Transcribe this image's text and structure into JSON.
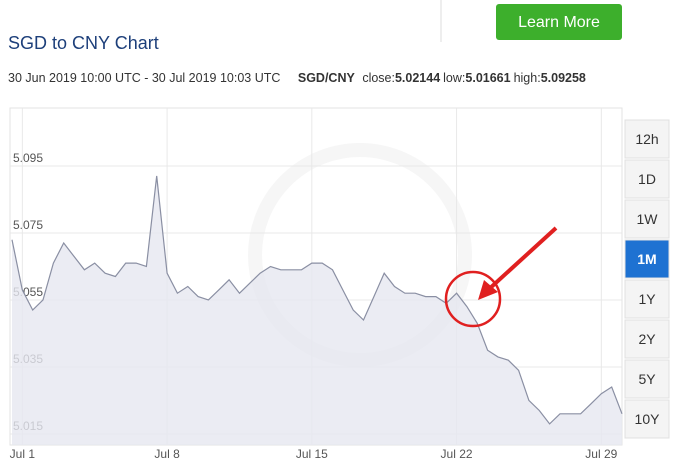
{
  "header": {
    "title": "SGD to CNY Chart",
    "range": "30 Jun 2019 10:00 UTC - 30 Jul 2019 10:03 UTC",
    "pair": "SGD/CNY",
    "stats": [
      {
        "label": "close:",
        "value": "5.02144"
      },
      {
        "label": "low:",
        "value": "5.01661"
      },
      {
        "label": "high:",
        "value": "5.09258"
      }
    ],
    "cta": "Learn More"
  },
  "periods": {
    "buttons": [
      "12h",
      "1D",
      "1W",
      "1M",
      "1Y",
      "2Y",
      "5Y",
      "10Y"
    ],
    "active": 3
  },
  "chart_data": {
    "type": "line",
    "color": "#8a8fa3",
    "grid": true,
    "categories": [
      null,
      "Jul 1",
      null,
      null,
      null,
      null,
      null,
      null,
      null,
      null,
      null,
      null,
      null,
      null,
      null,
      "Jul 8",
      null,
      null,
      null,
      null,
      null,
      null,
      null,
      null,
      null,
      null,
      null,
      null,
      null,
      "Jul 15",
      null,
      null,
      null,
      null,
      null,
      null,
      null,
      null,
      null,
      null,
      null,
      null,
      null,
      "Jul 22",
      null,
      null,
      null,
      null,
      null,
      null,
      null,
      null,
      null,
      null,
      null,
      null,
      null,
      "Jul 29",
      null,
      null
    ],
    "values": [
      5.073,
      5.058,
      5.052,
      5.055,
      5.066,
      5.072,
      5.068,
      5.064,
      5.066,
      5.063,
      5.062,
      5.066,
      5.066,
      5.065,
      5.092,
      5.063,
      5.057,
      5.059,
      5.056,
      5.055,
      5.058,
      5.061,
      5.057,
      5.06,
      5.063,
      5.065,
      5.064,
      5.064,
      5.064,
      5.066,
      5.066,
      5.064,
      5.058,
      5.052,
      5.049,
      5.056,
      5.063,
      5.059,
      5.057,
      5.057,
      5.056,
      5.056,
      5.054,
      5.057,
      5.053,
      5.048,
      5.04,
      5.038,
      5.037,
      5.034,
      5.025,
      5.022,
      5.018,
      5.021,
      5.021,
      5.021,
      5.024,
      5.027,
      5.029,
      5.021
    ],
    "ylim": [
      5.0117,
      5.1123
    ],
    "yticks": [
      5.015,
      5.035,
      5.055,
      5.075,
      5.095
    ]
  }
}
